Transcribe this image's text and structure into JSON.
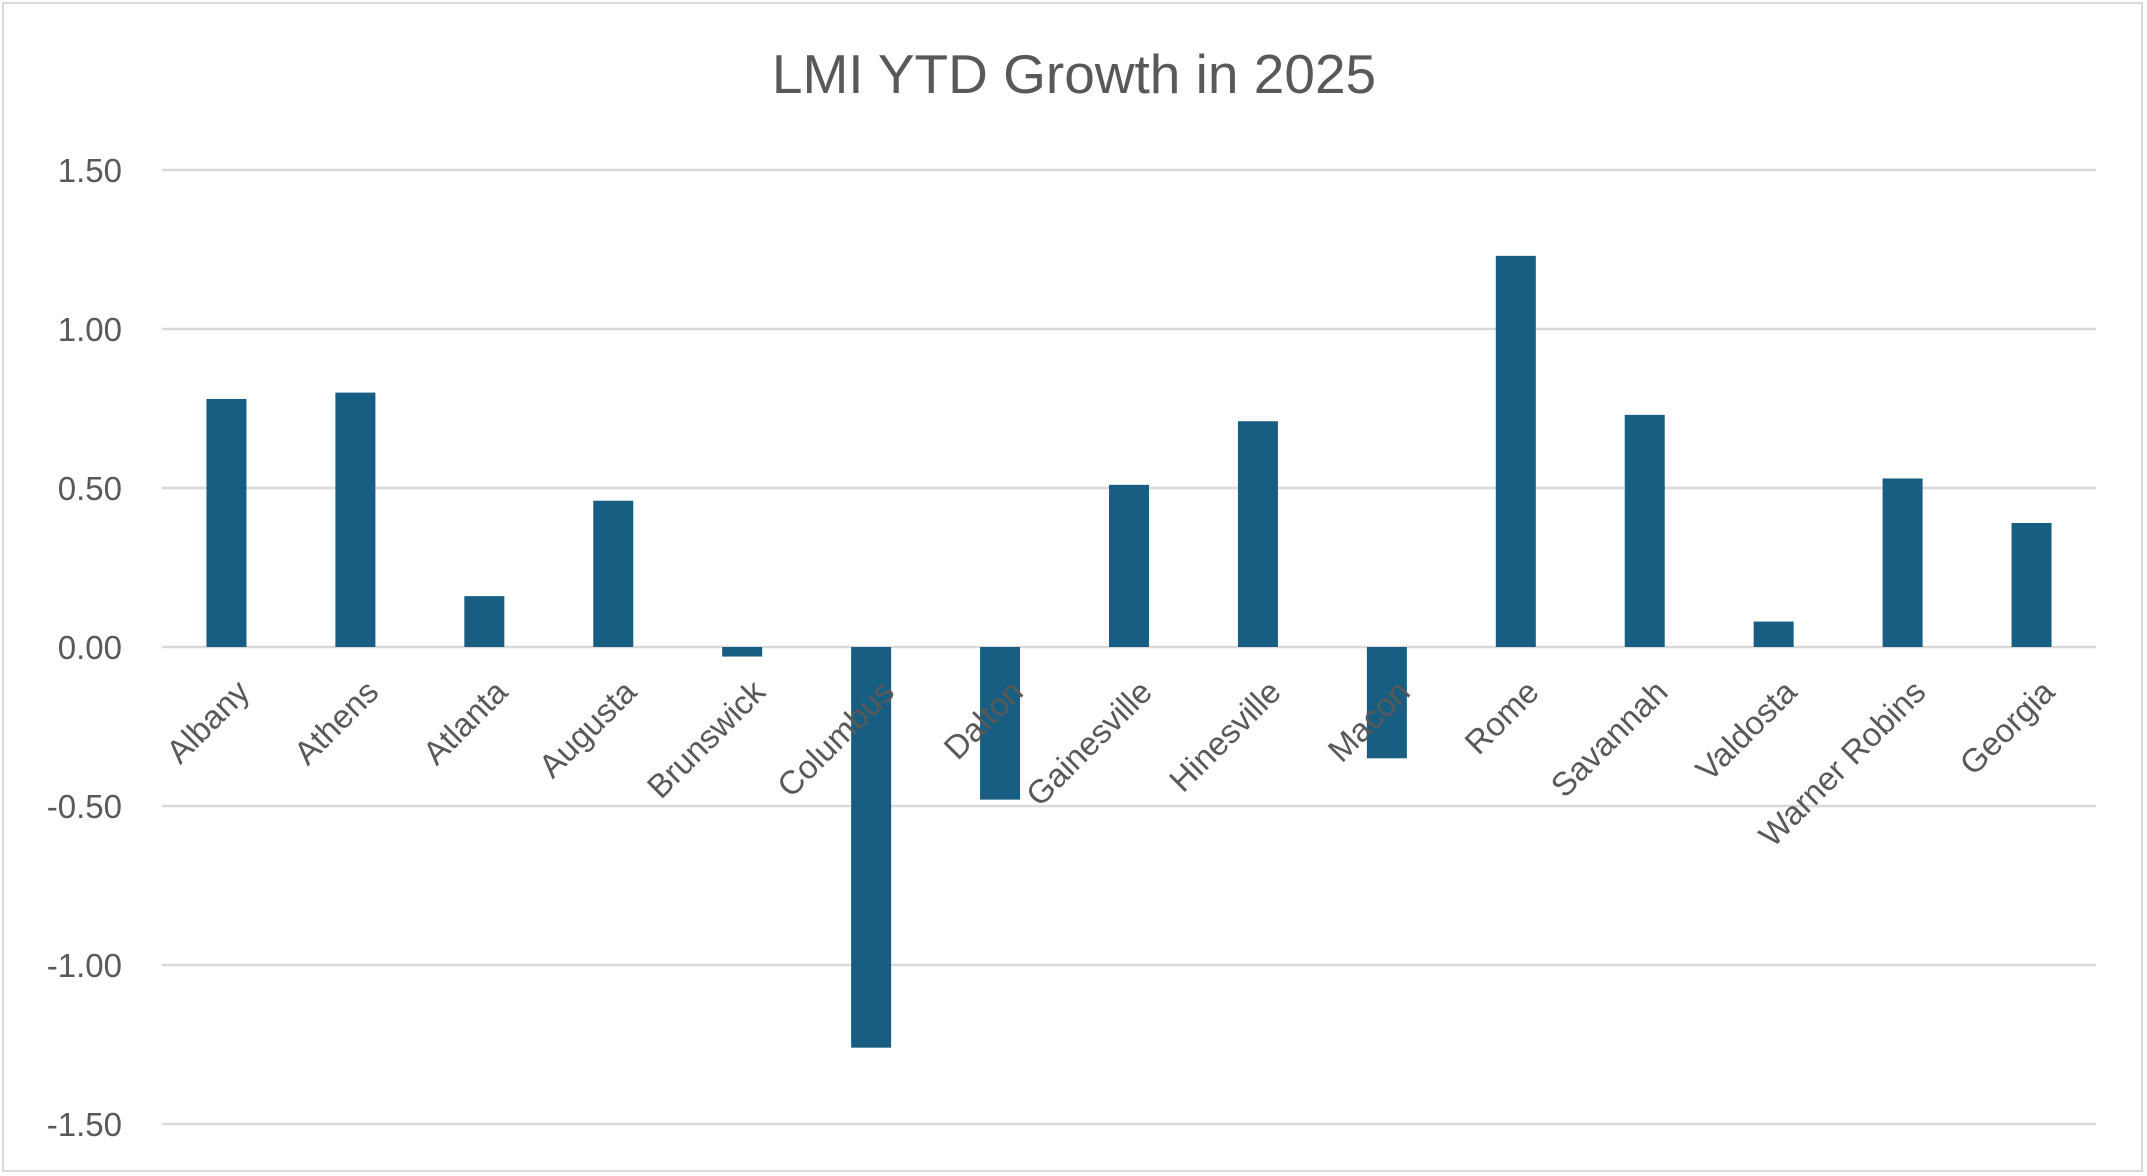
{
  "chart_data": {
    "type": "bar",
    "title": "LMI YTD Growth in 2025",
    "xlabel": "",
    "ylabel": "",
    "categories": [
      "Albany",
      "Athens",
      "Atlanta",
      "Augusta",
      "Brunswick",
      "Columbus",
      "Dalton",
      "Gainesville",
      "Hinesville",
      "Macon",
      "Rome",
      "Savannah",
      "Valdosta",
      "Warner Robins",
      "Georgia"
    ],
    "values": [
      0.78,
      0.8,
      0.16,
      0.46,
      -0.03,
      -1.26,
      -0.48,
      0.51,
      0.71,
      -0.35,
      1.23,
      0.73,
      0.08,
      0.53,
      0.39
    ],
    "ylim": [
      -1.5,
      1.5
    ],
    "yticks": [
      "1.50",
      "1.00",
      "0.50",
      "0.00",
      "-0.50",
      "-1.00",
      "-1.50"
    ],
    "ytick_values": [
      1.5,
      1.0,
      0.5,
      0.0,
      -0.5,
      -1.0,
      -1.5
    ],
    "grid": true,
    "legend": "none",
    "bar_color": "#175e82"
  }
}
